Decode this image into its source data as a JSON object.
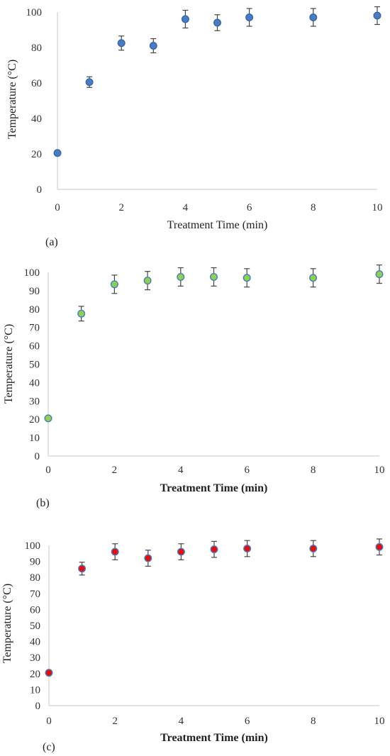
{
  "chart_data": [
    {
      "type": "scatter",
      "panel_label": "(a)",
      "xlabel": "Treatment Time (min)",
      "ylabel": "Temperature (°C)",
      "xlim": [
        0,
        10
      ],
      "ylim": [
        0,
        100
      ],
      "xticks": [
        0,
        2,
        4,
        6,
        8,
        10
      ],
      "yticks": [
        0,
        20,
        40,
        60,
        80,
        100
      ],
      "grid": false,
      "marker_fill": "#4a7cc0",
      "marker_stroke": "#3a66a6",
      "series": [
        {
          "x": [
            0,
            1,
            2,
            3,
            4,
            5,
            6,
            8,
            10
          ],
          "y": [
            20.5,
            60.5,
            82.5,
            81,
            96,
            94,
            97,
            97,
            98
          ],
          "error": [
            0,
            3,
            4,
            4,
            5,
            4.5,
            5,
            5,
            5
          ]
        }
      ]
    },
    {
      "type": "scatter",
      "panel_label": "(b)",
      "xlabel": "Treatment Time (min)",
      "ylabel": "Temperature (°C)",
      "xlim": [
        0,
        10
      ],
      "ylim": [
        0,
        100
      ],
      "xticks": [
        0,
        2,
        4,
        6,
        8,
        10
      ],
      "yticks": [
        0,
        10,
        20,
        30,
        40,
        50,
        60,
        70,
        80,
        90,
        100
      ],
      "grid": false,
      "marker_fill": "#8fd04e",
      "marker_stroke": "#4a7cc0",
      "series": [
        {
          "x": [
            0,
            1,
            2,
            3,
            4,
            5,
            6,
            8,
            10
          ],
          "y": [
            20.5,
            77.5,
            93.5,
            95.5,
            97.5,
            97.5,
            97,
            97,
            99
          ],
          "error": [
            0,
            4,
            5,
            5,
            5,
            5,
            5,
            5,
            5
          ]
        }
      ]
    },
    {
      "type": "scatter",
      "panel_label": "(c)",
      "xlabel": "Treatment Time (min)",
      "ylabel": "Temperature (°C)",
      "xlim": [
        0,
        10
      ],
      "ylim": [
        0,
        100
      ],
      "xticks": [
        0,
        2,
        4,
        6,
        8,
        10
      ],
      "yticks": [
        0,
        10,
        20,
        30,
        40,
        50,
        60,
        70,
        80,
        90,
        100
      ],
      "grid": false,
      "marker_fill": "#e01010",
      "marker_stroke": "#4a7cc0",
      "series": [
        {
          "x": [
            0,
            1,
            2,
            3,
            4,
            5,
            6,
            8,
            10
          ],
          "y": [
            20.5,
            85.5,
            96,
            92,
            96,
            97.5,
            98,
            98,
            99
          ],
          "error": [
            0,
            4,
            5,
            5,
            5,
            5,
            5,
            5,
            5
          ]
        }
      ]
    }
  ]
}
